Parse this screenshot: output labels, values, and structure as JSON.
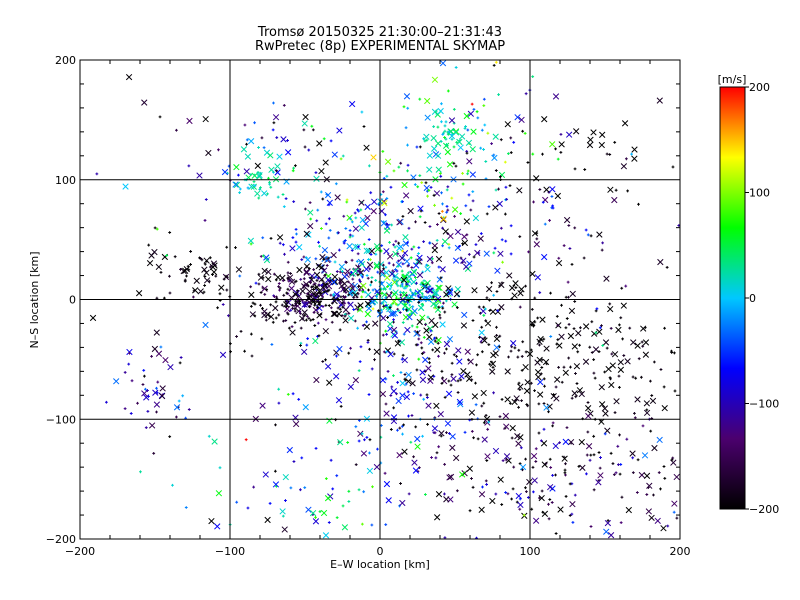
{
  "chart_data": {
    "type": "scatter",
    "title_line1": "Tromsø 20150325 21:30:00–21:31:43",
    "title_line2": "RwPretec (8p) EXPERIMENTAL SKYMAP",
    "xlabel": "E–W location [km]",
    "ylabel": "N–S location [km]",
    "xlim": [
      -200,
      200
    ],
    "ylim": [
      -200,
      200
    ],
    "xticks": [
      -200,
      -100,
      0,
      100,
      200
    ],
    "yticks": [
      -200,
      -100,
      0,
      100,
      200
    ],
    "xtick_labels": [
      "−200",
      "−100",
      "0",
      "100",
      "200"
    ],
    "ytick_labels": [
      "−200",
      "−100",
      "0",
      "100",
      "200"
    ],
    "grid": true,
    "colorbar": {
      "unit": "[m/s]",
      "range": [
        -200,
        200
      ],
      "ticks": [
        200,
        100,
        0,
        -100,
        -200
      ],
      "tick_labels": [
        "200",
        "100",
        "0",
        "−100",
        "−200"
      ],
      "colormap": [
        "#000000",
        "#4b006e",
        "#0000ff",
        "#00c8ff",
        "#00ff00",
        "#ffff00",
        "#ff0000"
      ]
    },
    "markers": [
      "plus",
      "cross"
    ],
    "clusters": [
      {
        "x": -40,
        "y": 5,
        "sx": 18,
        "sy": 12,
        "n": 260,
        "v": -170,
        "vs": 40
      },
      {
        "x": 15,
        "y": 5,
        "sx": 18,
        "sy": 14,
        "n": 220,
        "v": 20,
        "vs": 40
      },
      {
        "x": -15,
        "y": 40,
        "sx": 30,
        "sy": 25,
        "n": 120,
        "v": -20,
        "vs": 60
      },
      {
        "x": 20,
        "y": 45,
        "sx": 35,
        "sy": 30,
        "n": 120,
        "v": -110,
        "vs": 50
      },
      {
        "x": 40,
        "y": 120,
        "sx": 30,
        "sy": 50,
        "n": 130,
        "v": 30,
        "vs": 60
      },
      {
        "x": 45,
        "y": 135,
        "sx": 8,
        "sy": 8,
        "n": 45,
        "v": 20,
        "vs": 15
      },
      {
        "x": -80,
        "y": 100,
        "sx": 12,
        "sy": 12,
        "n": 45,
        "v": 25,
        "vs": 15
      },
      {
        "x": -60,
        "y": 120,
        "sx": 40,
        "sy": 25,
        "n": 55,
        "v": -100,
        "vs": 90
      },
      {
        "x": -120,
        "y": 22,
        "sx": 18,
        "sy": 12,
        "n": 55,
        "v": -195,
        "vs": 10
      },
      {
        "x": -60,
        "y": 0,
        "sx": 30,
        "sy": 20,
        "n": 90,
        "v": -190,
        "vs": 20
      },
      {
        "x": 120,
        "y": -55,
        "sx": 45,
        "sy": 30,
        "n": 220,
        "v": -195,
        "vs": 10
      },
      {
        "x": 120,
        "y": -150,
        "sx": 55,
        "sy": 30,
        "n": 210,
        "v": -160,
        "vs": 60
      },
      {
        "x": 20,
        "y": -60,
        "sx": 35,
        "sy": 35,
        "n": 160,
        "v": -90,
        "vs": 70
      },
      {
        "x": -150,
        "y": -75,
        "sx": 15,
        "sy": 15,
        "n": 45,
        "v": -110,
        "vs": 40
      },
      {
        "x": -40,
        "y": -150,
        "sx": 50,
        "sy": 40,
        "n": 90,
        "v": -50,
        "vs": 90
      },
      {
        "x": 60,
        "y": -20,
        "sx": 40,
        "sy": 30,
        "n": 90,
        "v": -200,
        "vs": 5
      },
      {
        "x": 110,
        "y": 60,
        "sx": 40,
        "sy": 40,
        "n": 70,
        "v": -140,
        "vs": 60
      },
      {
        "x": 140,
        "y": 110,
        "sx": 40,
        "sy": 30,
        "n": 40,
        "v": -200,
        "vs": 5
      },
      {
        "x": 0,
        "y": 0,
        "sx": 120,
        "sy": 120,
        "n": 180,
        "v": -100,
        "vs": 100
      }
    ]
  }
}
